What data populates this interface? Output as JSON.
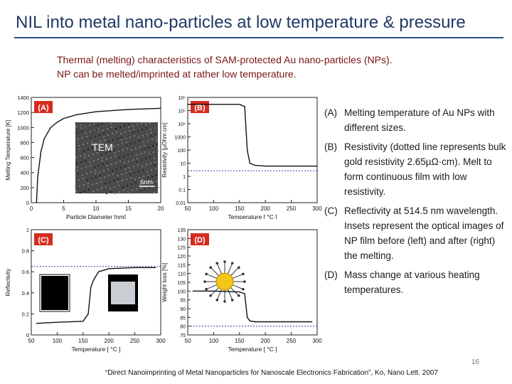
{
  "slide": {
    "title_part1": "NIL",
    "title_part2": " into metal nano-particles at low temperature & pressure",
    "subtitle_line1": "Thermal (melting) characteristics of SAM-protected Au nano-particles (NPs).",
    "subtitle_line2": "NP can be melted/imprinted at rather low temperature.",
    "page_number": "16",
    "citation": "“Direct Nanoimprinting of Metal Nanoparticles for Nanoscale Electronics Fabrication”, Ko, Nano Lett. 2007"
  },
  "descriptions": [
    {
      "label": "(A)",
      "text": "Melting temperature of Au NPs with different sizes."
    },
    {
      "label": "(B)",
      "text": "Resistivity (dotted line represents bulk gold resistivity 2.65µΩ·cm). Melt to form continuous film with low resistivity."
    },
    {
      "label": "(C)",
      "text": "Reflectivity at 514.5 nm wavelength. Insets represent the optical images of NP film before (left) and after (right) the melting."
    },
    {
      "label": "(D)",
      "text": "Mass change at various heating temperatures."
    }
  ],
  "chart_data": [
    {
      "type": "line",
      "panel_label": "(A)",
      "xlabel": "Particle Diameter [nm]",
      "ylabel": "Melting Temperature [K]",
      "xlim": [
        0,
        20
      ],
      "ylim": [
        0,
        1400
      ],
      "xticks": [
        "0",
        "5",
        "10",
        "15",
        "20"
      ],
      "yticks": [
        "0",
        "200",
        "400",
        "600",
        "800",
        "1000",
        "1200",
        "1400"
      ],
      "inset_label": "TEM",
      "inset_scale": "6nm",
      "x": [
        0.8,
        1.0,
        1.5,
        2.0,
        3.0,
        4.0,
        5.0,
        7.0,
        10.0,
        15.0,
        20.0
      ],
      "y": [
        0,
        350,
        680,
        850,
        1000,
        1070,
        1120,
        1170,
        1210,
        1240,
        1255
      ]
    },
    {
      "type": "line",
      "panel_label": "(B)",
      "xlabel": "Temperature [ °C ]",
      "ylabel": "Resistivity [µOhm cm]",
      "yscale": "log",
      "xlim": [
        50,
        300
      ],
      "ylim": [
        0.01,
        1000000
      ],
      "xticks": [
        "50",
        "100",
        "150",
        "200",
        "250",
        "300"
      ],
      "yticks": [
        "0.01",
        "0.1",
        "1",
        "10",
        "100",
        "1000",
        "10⁴",
        "10⁵",
        "10⁶"
      ],
      "bulk_resistivity": 2.65,
      "x": [
        50,
        100,
        150,
        160,
        165,
        170,
        180,
        200,
        250,
        300
      ],
      "y": [
        300000,
        300000,
        300000,
        200000,
        100,
        10,
        7,
        6,
        6,
        6
      ]
    },
    {
      "type": "line",
      "panel_label": "(C)",
      "xlabel": "Temperature [ °C ]",
      "ylabel": "Reflectivity",
      "xlim": [
        50,
        300
      ],
      "ylim": [
        0,
        1
      ],
      "xticks": [
        "50",
        "100",
        "150",
        "200",
        "250",
        "300"
      ],
      "yticks": [
        "0",
        "0.2",
        "0.4",
        "0.6",
        "0.8",
        "1"
      ],
      "reference_line": 0.65,
      "x": [
        60,
        100,
        150,
        160,
        165,
        170,
        180,
        200,
        250,
        290
      ],
      "y": [
        0.11,
        0.12,
        0.13,
        0.2,
        0.45,
        0.52,
        0.6,
        0.63,
        0.64,
        0.64
      ]
    },
    {
      "type": "line",
      "panel_label": "(D)",
      "xlabel": "Temperature [ °C ]",
      "ylabel": "Weight loss [%]",
      "xlim": [
        50,
        300
      ],
      "ylim": [
        75,
        135
      ],
      "xticks": [
        "50",
        "100",
        "150",
        "200",
        "250",
        "300"
      ],
      "yticks": [
        "75",
        "80",
        "85",
        "90",
        "95",
        "100",
        "105",
        "110",
        "115",
        "120",
        "125",
        "130",
        "135"
      ],
      "reference_line": 80,
      "x": [
        60,
        100,
        150,
        160,
        165,
        170,
        180,
        200,
        250,
        290
      ],
      "y": [
        100,
        100,
        99.5,
        98.5,
        85,
        83,
        82.5,
        82.5,
        82.5,
        82.5
      ]
    }
  ],
  "colors": {
    "title": "#1f3864",
    "subtitle": "#7a1414",
    "panel_label_bg": "#d62b1f",
    "reference_line": "#2b3fa8",
    "curve": "#111111"
  }
}
